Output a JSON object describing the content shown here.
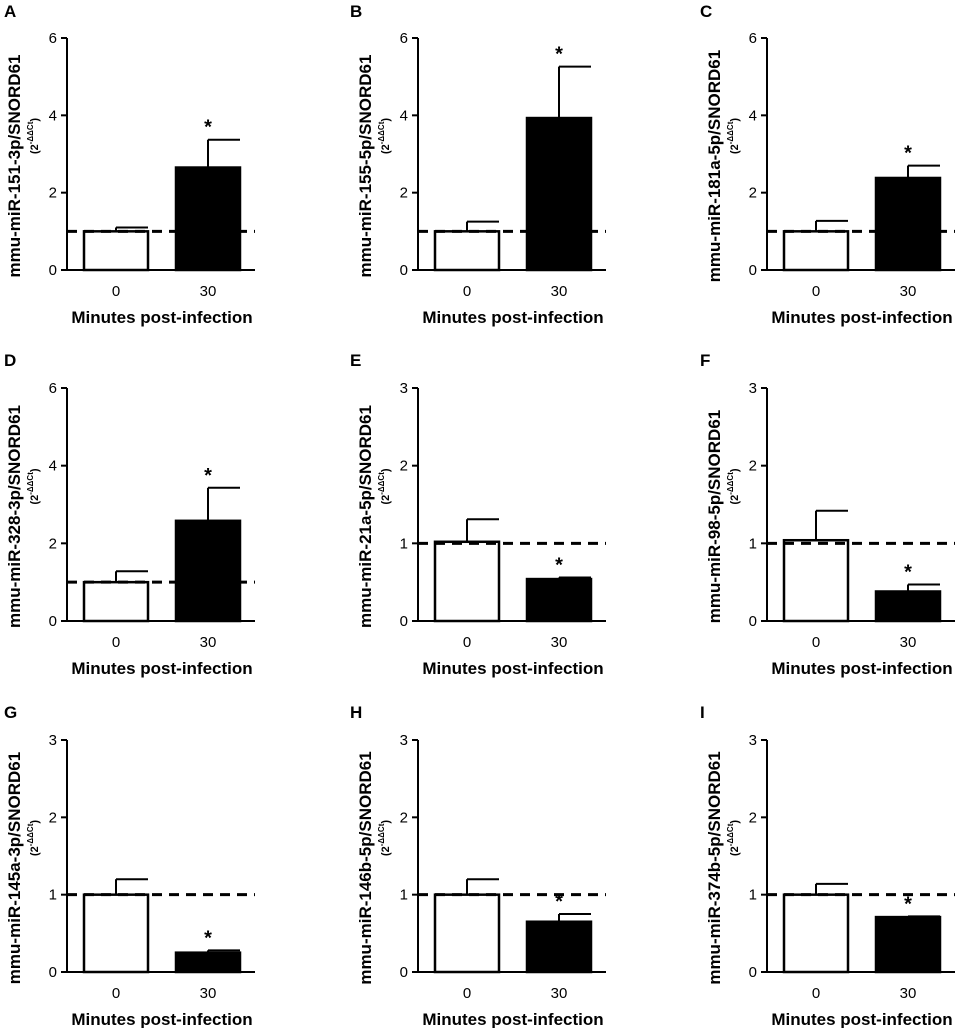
{
  "figure": {
    "xlabel": "Minutes post-infection",
    "categories": [
      "0",
      "30"
    ],
    "ylabel_suffix": "(2",
    "ylabel_exponent": "-ΔΔCt",
    "ylabel_close": ")",
    "significance_marker": "*",
    "reference_line_value": 1,
    "colors": {
      "control_fill": "#ffffff",
      "treated_fill": "#000000",
      "stroke": "#000000"
    }
  },
  "chart_data": [
    {
      "type": "bar",
      "panel": "A",
      "title": "",
      "ylabel": "mmu-miR-151-3p/SNORD61",
      "xlabel": "Minutes post-infection",
      "categories": [
        "0",
        "30"
      ],
      "values": [
        1.0,
        2.65
      ],
      "errors": [
        0.1,
        0.72
      ],
      "ylim": [
        0,
        6
      ],
      "yticks": [
        "0",
        "2",
        "4",
        "6"
      ],
      "significant": [
        false,
        true
      ]
    },
    {
      "type": "bar",
      "panel": "B",
      "title": "",
      "ylabel": "mmu-miR-155-5p/SNORD61",
      "xlabel": "Minutes post-infection",
      "categories": [
        "0",
        "30"
      ],
      "values": [
        1.0,
        3.93
      ],
      "errors": [
        0.25,
        1.33
      ],
      "ylim": [
        0,
        6
      ],
      "yticks": [
        "0",
        "2",
        "4",
        "6"
      ],
      "significant": [
        false,
        true
      ]
    },
    {
      "type": "bar",
      "panel": "C",
      "title": "",
      "ylabel": "mmu-miR-181a-5p/SNORD61",
      "xlabel": "Minutes post-infection",
      "categories": [
        "0",
        "30"
      ],
      "values": [
        1.0,
        2.38
      ],
      "errors": [
        0.27,
        0.32
      ],
      "ylim": [
        0,
        6
      ],
      "yticks": [
        "0",
        "2",
        "4",
        "6"
      ],
      "significant": [
        false,
        true
      ]
    },
    {
      "type": "bar",
      "panel": "D",
      "title": "",
      "ylabel": "mmu-miR-328-3p/SNORD61",
      "xlabel": "Minutes post-infection",
      "categories": [
        "0",
        "30"
      ],
      "values": [
        1.0,
        2.58
      ],
      "errors": [
        0.28,
        0.85
      ],
      "ylim": [
        0,
        6
      ],
      "yticks": [
        "0",
        "2",
        "4",
        "6"
      ],
      "significant": [
        false,
        true
      ]
    },
    {
      "type": "bar",
      "panel": "E",
      "title": "",
      "ylabel": "mmu-miR-21a-5p/SNORD61",
      "xlabel": "Minutes post-infection",
      "categories": [
        "0",
        "30"
      ],
      "values": [
        1.02,
        0.54
      ],
      "errors": [
        0.29,
        0.02
      ],
      "ylim": [
        0,
        3
      ],
      "yticks": [
        "0",
        "1",
        "2",
        "3"
      ],
      "significant": [
        false,
        true
      ]
    },
    {
      "type": "bar",
      "panel": "F",
      "title": "",
      "ylabel": "mmu-miR-98-5p/SNORD61",
      "xlabel": "Minutes post-infection",
      "categories": [
        "0",
        "30"
      ],
      "values": [
        1.04,
        0.38
      ],
      "errors": [
        0.38,
        0.09
      ],
      "ylim": [
        0,
        3
      ],
      "yticks": [
        "0",
        "1",
        "2",
        "3"
      ],
      "significant": [
        false,
        true
      ]
    },
    {
      "type": "bar",
      "panel": "G",
      "title": "",
      "ylabel": "mmu-miR-145a-3p/SNORD61",
      "xlabel": "Minutes post-infection",
      "categories": [
        "0",
        "30"
      ],
      "values": [
        1.0,
        0.25
      ],
      "errors": [
        0.2,
        0.03
      ],
      "ylim": [
        0,
        3
      ],
      "yticks": [
        "0",
        "1",
        "2",
        "3"
      ],
      "significant": [
        false,
        true
      ]
    },
    {
      "type": "bar",
      "panel": "H",
      "title": "",
      "ylabel": "mmu-miR-146b-5p/SNORD61",
      "xlabel": "Minutes post-infection",
      "categories": [
        "0",
        "30"
      ],
      "values": [
        1.0,
        0.65
      ],
      "errors": [
        0.2,
        0.1
      ],
      "ylim": [
        0,
        3
      ],
      "yticks": [
        "0",
        "1",
        "2",
        "3"
      ],
      "significant": [
        false,
        true
      ]
    },
    {
      "type": "bar",
      "panel": "I",
      "title": "",
      "ylabel": "mmu-miR-374b-5p/SNORD61",
      "xlabel": "Minutes post-infection",
      "categories": [
        "0",
        "30"
      ],
      "values": [
        1.0,
        0.71
      ],
      "errors": [
        0.14,
        0.01
      ],
      "ylim": [
        0,
        3
      ],
      "yticks": [
        "0",
        "1",
        "2",
        "3"
      ],
      "significant": [
        false,
        true
      ]
    }
  ]
}
